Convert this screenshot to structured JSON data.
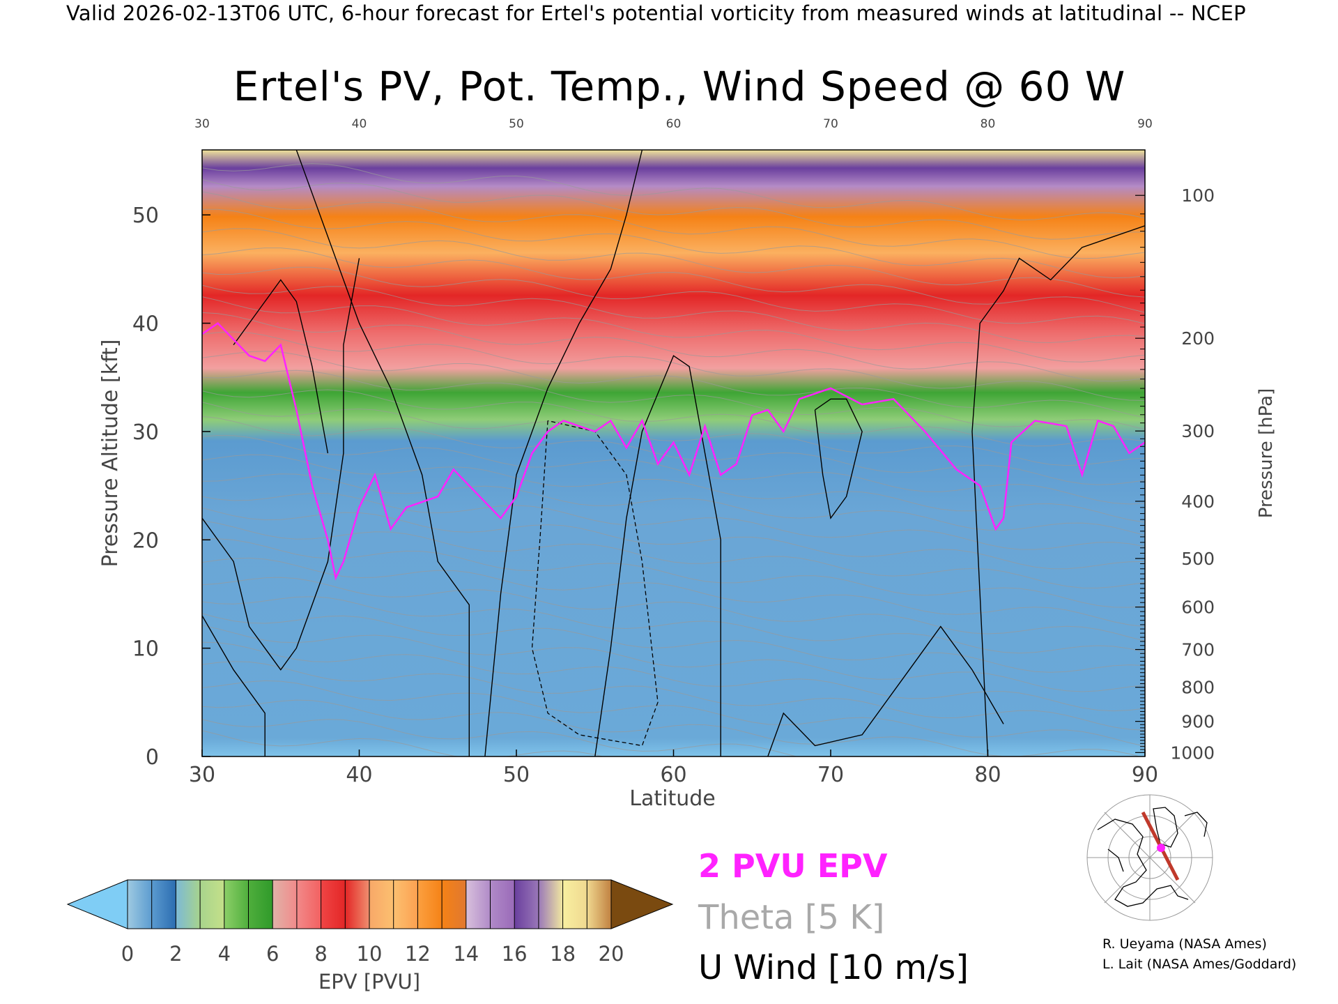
{
  "header": "Valid 2026-02-13T06 UTC, 6-hour forecast for Ertel's potential vorticity from measured winds at latitudinal -- NCEP",
  "chart_data": {
    "type": "heatmap",
    "title": "Ertel's PV, Pot. Temp., Wind Speed @ 60 W",
    "xlabel": "Latitude",
    "ylabel": "Pressure Altitude [kft]",
    "y2label": "Pressure [hPa]",
    "xlim": [
      30,
      90
    ],
    "ylim": [
      0,
      56
    ],
    "x_ticks": [
      "30",
      "40",
      "50",
      "60",
      "70",
      "80",
      "90"
    ],
    "top_x_ticks": [
      "30",
      "40",
      "50",
      "60",
      "70",
      "80",
      "90"
    ],
    "y_ticks": [
      "0",
      "10",
      "20",
      "30",
      "40",
      "50"
    ],
    "pressure_ticks": [
      {
        "hpa": 100,
        "label": "100"
      },
      {
        "hpa": 200,
        "label": "200"
      },
      {
        "hpa": 300,
        "label": "300"
      },
      {
        "hpa": 400,
        "label": "400"
      },
      {
        "hpa": 500,
        "label": "500"
      },
      {
        "hpa": 600,
        "label": "600"
      },
      {
        "hpa": 700,
        "label": "700"
      },
      {
        "hpa": 800,
        "label": "800"
      },
      {
        "hpa": 900,
        "label": "900"
      },
      {
        "hpa": 1000,
        "label": "1000"
      }
    ],
    "tropopause_2pvu_kft": [
      {
        "lat": 30,
        "alt": 39
      },
      {
        "lat": 31,
        "alt": 40
      },
      {
        "lat": 32,
        "alt": 38.5
      },
      {
        "lat": 33,
        "alt": 37
      },
      {
        "lat": 34,
        "alt": 36.5
      },
      {
        "lat": 35,
        "alt": 38
      },
      {
        "lat": 36,
        "alt": 32
      },
      {
        "lat": 37,
        "alt": 25
      },
      {
        "lat": 38,
        "alt": 20
      },
      {
        "lat": 38.5,
        "alt": 16.5
      },
      {
        "lat": 39,
        "alt": 18
      },
      {
        "lat": 40,
        "alt": 23
      },
      {
        "lat": 41,
        "alt": 26
      },
      {
        "lat": 42,
        "alt": 21
      },
      {
        "lat": 43,
        "alt": 23
      },
      {
        "lat": 44,
        "alt": 23.5
      },
      {
        "lat": 45,
        "alt": 24
      },
      {
        "lat": 46,
        "alt": 26.5
      },
      {
        "lat": 47,
        "alt": 25
      },
      {
        "lat": 48,
        "alt": 23.5
      },
      {
        "lat": 49,
        "alt": 22
      },
      {
        "lat": 50,
        "alt": 24
      },
      {
        "lat": 51,
        "alt": 28
      },
      {
        "lat": 52,
        "alt": 30
      },
      {
        "lat": 53,
        "alt": 31
      },
      {
        "lat": 54,
        "alt": 30.5
      },
      {
        "lat": 55,
        "alt": 30
      },
      {
        "lat": 56,
        "alt": 31
      },
      {
        "lat": 57,
        "alt": 28.5
      },
      {
        "lat": 58,
        "alt": 31
      },
      {
        "lat": 59,
        "alt": 27
      },
      {
        "lat": 60,
        "alt": 29
      },
      {
        "lat": 61,
        "alt": 26
      },
      {
        "lat": 62,
        "alt": 30.5
      },
      {
        "lat": 63,
        "alt": 26
      },
      {
        "lat": 64,
        "alt": 27
      },
      {
        "lat": 65,
        "alt": 31.5
      },
      {
        "lat": 66,
        "alt": 32
      },
      {
        "lat": 67,
        "alt": 30
      },
      {
        "lat": 68,
        "alt": 33
      },
      {
        "lat": 70,
        "alt": 34
      },
      {
        "lat": 72,
        "alt": 32.5
      },
      {
        "lat": 74,
        "alt": 33
      },
      {
        "lat": 76,
        "alt": 30
      },
      {
        "lat": 78,
        "alt": 26.5
      },
      {
        "lat": 79.5,
        "alt": 25
      },
      {
        "lat": 80.5,
        "alt": 21
      },
      {
        "lat": 81,
        "alt": 22
      },
      {
        "lat": 81.5,
        "alt": 29
      },
      {
        "lat": 83,
        "alt": 31
      },
      {
        "lat": 85,
        "alt": 30.5
      },
      {
        "lat": 86,
        "alt": 26
      },
      {
        "lat": 87,
        "alt": 31
      },
      {
        "lat": 88,
        "alt": 30.5
      },
      {
        "lat": 89,
        "alt": 28
      },
      {
        "lat": 90,
        "alt": 29
      }
    ],
    "colorbar": {
      "label": "EPV [PVU]",
      "tick_labels": [
        "0",
        "2",
        "4",
        "6",
        "8",
        "10",
        "12",
        "14",
        "16",
        "18",
        "20"
      ],
      "segments": [
        {
          "from": 0,
          "to": 1,
          "c1": "#9ecae1",
          "c2": "#5b9bd0"
        },
        {
          "from": 1,
          "to": 2,
          "c1": "#5b9bd0",
          "c2": "#2b6cb0"
        },
        {
          "from": 2,
          "to": 3,
          "c1": "#7cb9d6",
          "c2": "#a8d48c"
        },
        {
          "from": 3,
          "to": 4,
          "c1": "#a8d48c",
          "c2": "#c5e08a"
        },
        {
          "from": 4,
          "to": 5,
          "c1": "#8ccf68",
          "c2": "#4fae3c"
        },
        {
          "from": 5,
          "to": 6,
          "c1": "#4fae3c",
          "c2": "#2f9a2a"
        },
        {
          "from": 6,
          "to": 7,
          "c1": "#e0b2a8",
          "c2": "#f28a8a"
        },
        {
          "from": 7,
          "to": 8,
          "c1": "#f28a8a",
          "c2": "#f26060"
        },
        {
          "from": 8,
          "to": 9,
          "c1": "#f04545",
          "c2": "#e32626"
        },
        {
          "from": 9,
          "to": 10,
          "c1": "#e32626",
          "c2": "#f09070"
        },
        {
          "from": 10,
          "to": 11,
          "c1": "#f8a868",
          "c2": "#fcc070"
        },
        {
          "from": 11,
          "to": 12,
          "c1": "#fcc070",
          "c2": "#fca050"
        },
        {
          "from": 12,
          "to": 13,
          "c1": "#fca040",
          "c2": "#f58216"
        },
        {
          "from": 13,
          "to": 14,
          "c1": "#f58216",
          "c2": "#e07830"
        },
        {
          "from": 14,
          "to": 15,
          "c1": "#d8c0dc",
          "c2": "#b08ac8"
        },
        {
          "from": 15,
          "to": 16,
          "c1": "#b08ac8",
          "c2": "#9a6ab8"
        },
        {
          "from": 16,
          "to": 17,
          "c1": "#6a3f9e",
          "c2": "#9a78b8"
        },
        {
          "from": 17,
          "to": 18,
          "c1": "#9a78b8",
          "c2": "#f2e9a0"
        },
        {
          "from": 18,
          "to": 19,
          "c1": "#f8f0a0",
          "c2": "#f0d890"
        },
        {
          "from": 19,
          "to": 20,
          "c1": "#f0d890",
          "c2": "#c08040"
        }
      ],
      "under_color": "#7fcdf5",
      "over_color": "#7a4a10"
    },
    "legend": {
      "pvu": "2 PVU EPV",
      "theta": "Theta [5 K]",
      "wind": "U Wind [10 m/s]",
      "pvu_color": "#ff22ff",
      "theta_color": "#a9a9a9",
      "wind_color": "#000000"
    }
  },
  "credits": {
    "line1": "R. Ueyama (NASA Ames)",
    "line2": "L. Lait (NASA Ames/Goddard)"
  },
  "colors": {
    "path_color": "#c0392b",
    "point_color": "#ff22ff"
  }
}
